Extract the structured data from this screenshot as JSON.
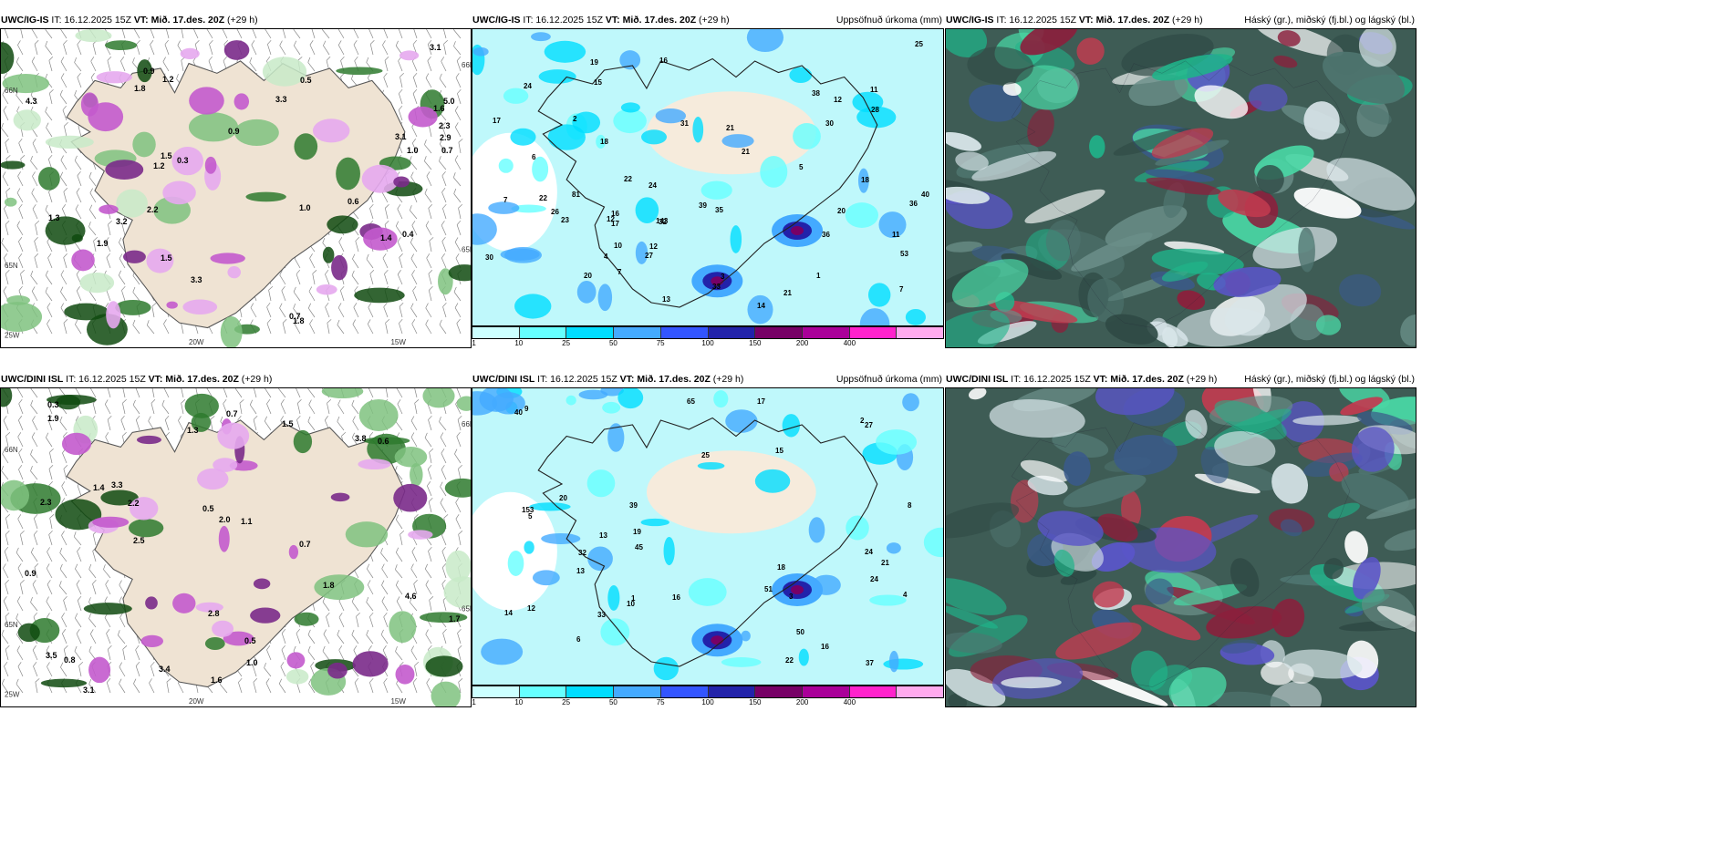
{
  "panels": [
    {
      "id": "p1",
      "title_left": "UWC/IG-IS",
      "title_it": "IT: 16.12.2025 15Z",
      "title_vt": "VT: Mið. 17.des. 20Z",
      "title_lead": "(+29 h)",
      "title_right": "",
      "type": "precip_type"
    },
    {
      "id": "p2",
      "title_left": "UWC/IG-IS",
      "title_it": "IT: 16.12.2025 15Z",
      "title_vt": "VT: Mið. 17.des. 20Z",
      "title_lead": "(+29 h)",
      "title_right": "Uppsöfnuð úrkoma (mm)",
      "type": "accum"
    },
    {
      "id": "p3",
      "title_left": "UWC/IG-IS",
      "title_it": "IT: 16.12.2025 15Z",
      "title_vt": "VT: Mið. 17.des. 20Z",
      "title_lead": "(+29 h)",
      "title_right": "Háský (gr.), miðský (fj.bl.) og lágský (bl.)",
      "type": "cloud"
    },
    {
      "id": "p4",
      "title_left": "UWC/DINI ISL",
      "title_it": "IT: 16.12.2025 15Z",
      "title_vt": "VT: Mið. 17.des. 20Z",
      "title_lead": "(+29 h)",
      "title_right": "",
      "type": "precip_type"
    },
    {
      "id": "p5",
      "title_left": "UWC/DINI ISL",
      "title_it": "IT: 16.12.2025 15Z",
      "title_vt": "VT: Mið. 17.des. 20Z",
      "title_lead": "(+29 h)",
      "title_right": "Uppsöfnuð úrkoma (mm)",
      "type": "accum"
    },
    {
      "id": "p6",
      "title_left": "UWC/DINI ISL",
      "title_it": "IT: 16.12.2025 15Z",
      "title_vt": "VT: Mið. 17.des. 20Z",
      "title_lead": "(+29 h)",
      "title_right": "Háský (gr.), miðský (fj.bl.) og lágský (bl.)",
      "type": "cloud"
    }
  ],
  "colorbar": {
    "ticks": [
      "1",
      "10",
      "25",
      "50",
      "75",
      "100",
      "150",
      "200",
      "400"
    ],
    "colors": [
      "#ccffff",
      "#66ffff",
      "#00ddff",
      "#44aaff",
      "#3355ff",
      "#2222aa",
      "#770066",
      "#aa0099",
      "#ff22cc",
      "#ffaaee"
    ]
  },
  "lat_labels_left": [
    "66N",
    "65N",
    "25W"
  ],
  "lon_labels_bottom": [
    "20W",
    "15W"
  ],
  "lat_labels_right": [
    "66N",
    "65N"
  ],
  "p1_values": [
    "0.3",
    "3.3",
    "1.6",
    "3.1",
    "4.3",
    "5.0",
    "2.3",
    "1.9",
    "1.5",
    "0.6",
    "3.2",
    "1.2",
    "0.5",
    "0.9",
    "1.5",
    "0.7",
    "0.9",
    "1.0",
    "1.3",
    "2.9",
    "0.7",
    "1.8",
    "3.1",
    "3.3",
    "1.0",
    "1.2",
    "0.4",
    "2.2",
    "1.8",
    "1.4"
  ],
  "p2_values": [
    "1",
    "2",
    "11",
    "32",
    "5",
    "35",
    "7",
    "11",
    "20",
    "21",
    "30",
    "12",
    "25",
    "39",
    "16",
    "22",
    "14",
    "7",
    "33",
    "38",
    "36",
    "31",
    "23",
    "40",
    "15",
    "12",
    "10",
    "4",
    "24",
    "7",
    "18",
    "20",
    "21",
    "17",
    "28",
    "81",
    "36",
    "53",
    "18",
    "26",
    "22",
    "24",
    "19",
    "27",
    "17",
    "21",
    "13",
    "16",
    "143",
    "30",
    "3",
    "6",
    "12"
  ],
  "p4_values": [
    "0.3",
    "0.5",
    "0.6",
    "0.7",
    "2.5",
    "2.3",
    "3.3",
    "3.8",
    "3.1",
    "1.5",
    "1.3",
    "2.0",
    "1.7",
    "2.8",
    "3.4",
    "1.8",
    "2.2",
    "3.5",
    "1.9",
    "1.4",
    "0.9",
    "0.5",
    "1.0",
    "1.1",
    "0.8",
    "0.7",
    "4.6",
    "1.6"
  ],
  "p5_values": [
    "2",
    "5",
    "1",
    "3",
    "17",
    "15",
    "24",
    "21",
    "27",
    "22",
    "13",
    "33",
    "25",
    "40",
    "32",
    "51",
    "18",
    "14",
    "16",
    "19",
    "12",
    "13",
    "65",
    "50",
    "10",
    "45",
    "20",
    "153",
    "39",
    "24",
    "37",
    "16",
    "9",
    "4",
    "8",
    "6"
  ]
}
